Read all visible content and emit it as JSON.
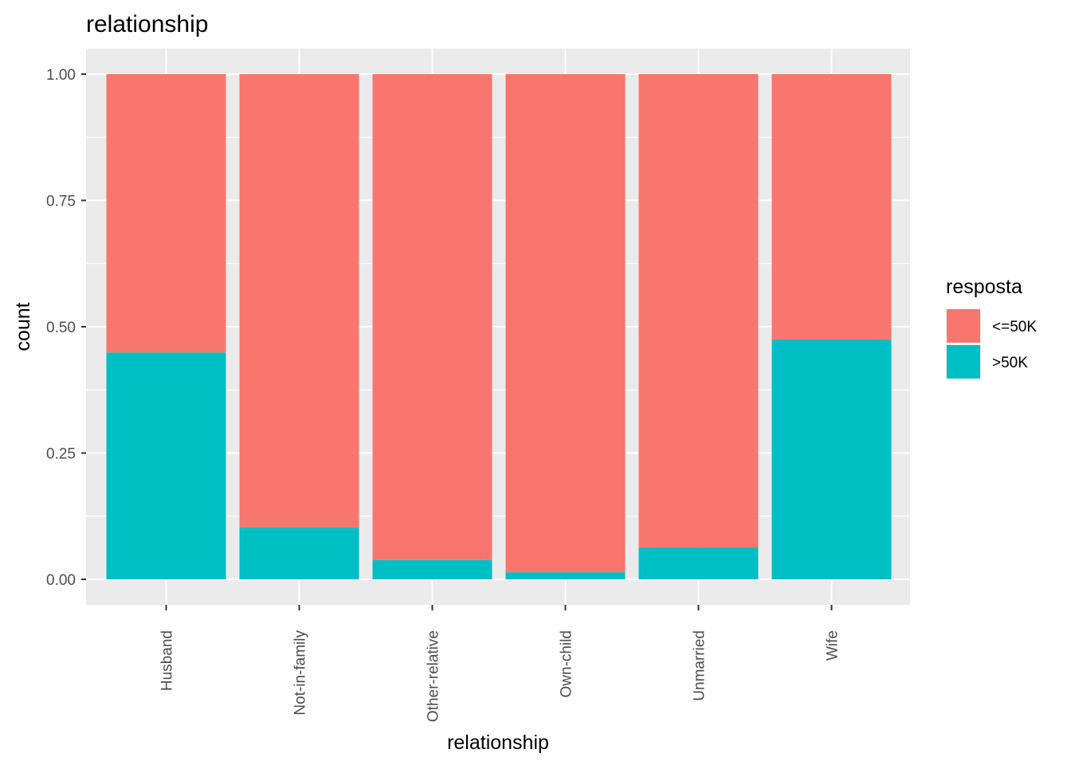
{
  "chart_data": {
    "type": "bar",
    "stacked": true,
    "title": "relationship",
    "xlabel": "relationship",
    "ylabel": "count",
    "ylim": [
      0,
      1
    ],
    "yticks": [
      "0.00",
      "0.25",
      "0.50",
      "0.75",
      "1.00"
    ],
    "ytick_values": [
      0,
      0.25,
      0.5,
      0.75,
      1
    ],
    "categories": [
      "Husband",
      "Not-in-family",
      "Other-relative",
      "Own-child",
      "Unmarried",
      "Wife"
    ],
    "series": [
      {
        "name": "<=50K",
        "color": "#F8766D",
        "values": [
          0.551,
          0.897,
          0.962,
          0.986,
          0.937,
          0.525
        ]
      },
      {
        "name": ">50K",
        "color": "#00BFC4",
        "values": [
          0.449,
          0.103,
          0.038,
          0.014,
          0.063,
          0.475
        ]
      }
    ],
    "legend": {
      "title": "resposta",
      "position": "right"
    },
    "grid": true,
    "panel_background": "#EBEBEB"
  }
}
